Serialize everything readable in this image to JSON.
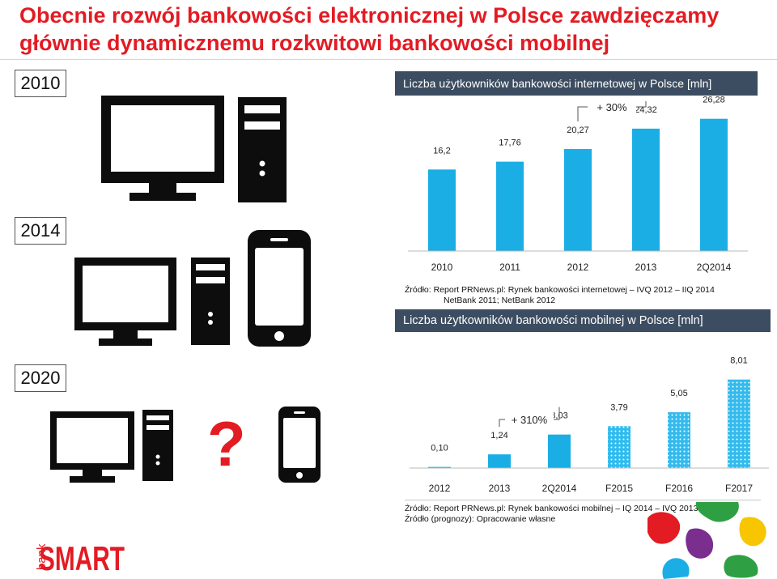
{
  "page": {
    "title_line1": "Obecnie rozwój bankowości elektronicznej w Polsce zawdzięczamy",
    "title_line2": "głównie dynamicznemu rozkwitowi bankowości mobilnej",
    "years": [
      "2010",
      "2014",
      "2020"
    ],
    "question_mark": "?"
  },
  "colors": {
    "accent_red": "#e31b23",
    "bar_blue": "#1aaee5",
    "forecast_blue": "#33bbee",
    "panel_header": "#3d4d61",
    "device_black": "#0d0d0d"
  },
  "icons": {
    "devices_2010": [
      "monitor-icon",
      "desktop-tower-icon"
    ],
    "devices_2014": [
      "monitor-icon",
      "desktop-tower-icon",
      "smartphone-icon"
    ],
    "devices_2020": [
      "monitor-icon",
      "desktop-tower-icon",
      "smartphone-icon"
    ]
  },
  "logo": {
    "small": "bank",
    "big": "SMART"
  },
  "chart_data": [
    {
      "type": "bar",
      "title": "Liczba użytkowników bankowości internetowej w Polsce [mln]",
      "categories": [
        "2010",
        "2011",
        "2012",
        "2013",
        "2Q2014"
      ],
      "values": [
        16.2,
        17.76,
        20.27,
        24.32,
        26.28
      ],
      "value_labels": [
        "16,2",
        "17,76",
        "20,27",
        "24,32",
        "26,28"
      ],
      "annotation": "+ 30%",
      "xlabel": "",
      "ylabel": "",
      "ylim": [
        0,
        28
      ],
      "grid": false,
      "source_lines": [
        "Źródło: Report PRNews.pl: Rynek bankowości internetowej – IVQ 2012 – IIQ 2014",
        "NetBank 2011; NetBank 2012"
      ]
    },
    {
      "type": "bar",
      "title": "Liczba użytkowników bankowości mobilnej w Polsce [mln]",
      "categories": [
        "2012",
        "2013",
        "2Q2014",
        "F2015",
        "F2016",
        "F2017"
      ],
      "values": [
        0.1,
        1.24,
        3.03,
        3.79,
        5.05,
        8.01
      ],
      "value_labels": [
        "0,10",
        "1,24",
        "3,03",
        "3,79",
        "5,05",
        "8,01"
      ],
      "forecast": [
        false,
        false,
        false,
        true,
        true,
        true
      ],
      "annotation": "+ 310%",
      "xlabel": "",
      "ylabel": "",
      "ylim": [
        0,
        8.5
      ],
      "grid": false,
      "source_lines": [
        "Źródło: Report PRNews.pl: Rynek bankowości mobilnej – IQ 2014 – IVQ 2013",
        "Źródło (prognozy): Opracowanie własne"
      ]
    }
  ]
}
